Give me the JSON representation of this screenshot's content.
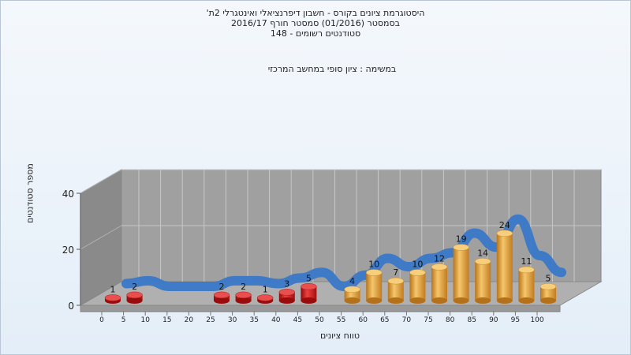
{
  "header": {
    "title_line1": "היסטוגרמת ציונים בקורס - חשבון דיפרנציאלי ואינטגרלי 2ת'",
    "title_line2": "בסמסטר  (01/2016)  סמסטר חורף 2016/17",
    "title_line3": "סטודנטים רשומים - 148"
  },
  "colors": {
    "fail": "#d81818",
    "pass": "#e8a23a",
    "trend": "#3a78c8",
    "trend_low": "#6e6e6e",
    "wall": "#a0a0a0",
    "floor": "#b0b0b0"
  },
  "chart_data": {
    "type": "bar",
    "subtitle": "במשימה : ציון סופי במחשב המרכזי",
    "xlabel": "טווח ציונים",
    "ylabel": "מספר סטודנטים",
    "ylim": [
      0,
      40
    ],
    "yticks": [
      "0",
      "20",
      "40"
    ],
    "categories": [
      "0",
      "5",
      "10",
      "15",
      "20",
      "25",
      "30",
      "35",
      "40",
      "45",
      "50",
      "55",
      "60",
      "65",
      "70",
      "75",
      "80",
      "85",
      "90",
      "95",
      "100"
    ],
    "values": [
      1,
      2,
      0,
      0,
      0,
      2,
      2,
      1,
      3,
      5,
      0,
      4,
      10,
      7,
      10,
      12,
      19,
      14,
      24,
      11,
      5
    ],
    "fail_threshold": 55,
    "grid": true
  }
}
